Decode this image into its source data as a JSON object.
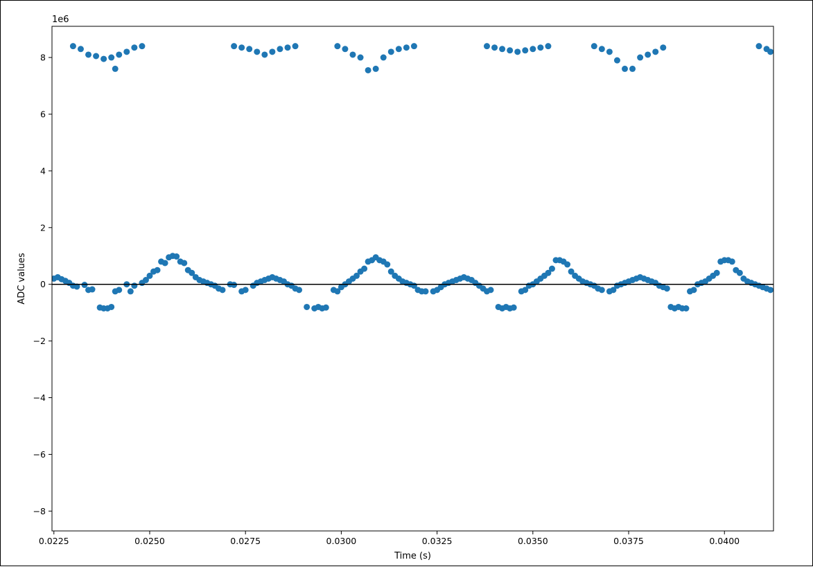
{
  "chart_data": {
    "type": "scatter",
    "title": "",
    "xlabel": "Time (s)",
    "ylabel": "ADC values",
    "y_offset_label": "1e6",
    "xlim": [
      0.02245,
      0.04128
    ],
    "ylim": [
      -8.7,
      9.1
    ],
    "y_scale_multiplier": 1000000,
    "x_ticks": [
      0.0225,
      0.025,
      0.0275,
      0.03,
      0.0325,
      0.035,
      0.0375,
      0.04
    ],
    "x_tick_labels": [
      "0.0225",
      "0.0250",
      "0.0275",
      "0.0300",
      "0.0325",
      "0.0350",
      "0.0375",
      "0.0400"
    ],
    "y_ticks": [
      -8,
      -6,
      -4,
      -2,
      0,
      2,
      4,
      6,
      8
    ],
    "y_tick_labels": [
      "−8",
      "−6",
      "−4",
      "−2",
      "0",
      "2",
      "4",
      "6",
      "8"
    ],
    "grid": false,
    "legend": "none",
    "reference_line_y": 0,
    "marker_color": "#1f77b4",
    "series": [
      {
        "values_unit": "ADC value ×1e6",
        "points": [
          [
            0.0225,
            0.2
          ],
          [
            0.0226,
            0.25
          ],
          [
            0.0227,
            0.18
          ],
          [
            0.0228,
            0.12
          ],
          [
            0.0229,
            0.05
          ],
          [
            0.023,
            -0.05
          ],
          [
            0.0231,
            -0.08
          ],
          [
            0.0233,
            -0.02
          ],
          [
            0.0234,
            -0.2
          ],
          [
            0.0235,
            -0.18
          ],
          [
            0.0237,
            -0.82
          ],
          [
            0.0238,
            -0.85
          ],
          [
            0.0239,
            -0.85
          ],
          [
            0.024,
            -0.8
          ],
          [
            0.0241,
            -0.25
          ],
          [
            0.0242,
            -0.2
          ],
          [
            0.0244,
            0.0
          ],
          [
            0.0245,
            -0.25
          ],
          [
            0.0246,
            -0.05
          ],
          [
            0.0248,
            0.05
          ],
          [
            0.0249,
            0.15
          ],
          [
            0.025,
            0.3
          ],
          [
            0.0251,
            0.45
          ],
          [
            0.0252,
            0.5
          ],
          [
            0.0253,
            0.8
          ],
          [
            0.0254,
            0.75
          ],
          [
            0.0255,
            0.95
          ],
          [
            0.0256,
            1.0
          ],
          [
            0.0257,
            0.98
          ],
          [
            0.0258,
            0.8
          ],
          [
            0.0259,
            0.75
          ],
          [
            0.026,
            0.5
          ],
          [
            0.0261,
            0.4
          ],
          [
            0.0262,
            0.25
          ],
          [
            0.0263,
            0.15
          ],
          [
            0.0264,
            0.1
          ],
          [
            0.0265,
            0.05
          ],
          [
            0.0266,
            0.0
          ],
          [
            0.0267,
            -0.05
          ],
          [
            0.0268,
            -0.15
          ],
          [
            0.0269,
            -0.2
          ],
          [
            0.0271,
            0.0
          ],
          [
            0.0272,
            -0.02
          ],
          [
            0.0274,
            -0.25
          ],
          [
            0.0275,
            -0.2
          ],
          [
            0.0277,
            -0.05
          ],
          [
            0.0278,
            0.05
          ],
          [
            0.0279,
            0.1
          ],
          [
            0.028,
            0.15
          ],
          [
            0.0281,
            0.2
          ],
          [
            0.0282,
            0.25
          ],
          [
            0.0283,
            0.2
          ],
          [
            0.0284,
            0.15
          ],
          [
            0.0285,
            0.1
          ],
          [
            0.0286,
            0.0
          ],
          [
            0.0287,
            -0.05
          ],
          [
            0.0288,
            -0.15
          ],
          [
            0.0289,
            -0.2
          ],
          [
            0.0291,
            -0.8
          ],
          [
            0.0293,
            -0.85
          ],
          [
            0.0294,
            -0.8
          ],
          [
            0.0295,
            -0.85
          ],
          [
            0.0296,
            -0.82
          ],
          [
            0.0298,
            -0.2
          ],
          [
            0.0299,
            -0.25
          ],
          [
            0.03,
            -0.1
          ],
          [
            0.0301,
            0.0
          ],
          [
            0.0302,
            0.1
          ],
          [
            0.0303,
            0.2
          ],
          [
            0.0304,
            0.3
          ],
          [
            0.0305,
            0.45
          ],
          [
            0.0306,
            0.55
          ],
          [
            0.0307,
            0.8
          ],
          [
            0.0308,
            0.85
          ],
          [
            0.0309,
            0.95
          ],
          [
            0.031,
            0.85
          ],
          [
            0.0311,
            0.8
          ],
          [
            0.0312,
            0.7
          ],
          [
            0.0313,
            0.45
          ],
          [
            0.0314,
            0.3
          ],
          [
            0.0315,
            0.2
          ],
          [
            0.0316,
            0.1
          ],
          [
            0.0317,
            0.05
          ],
          [
            0.0318,
            0.0
          ],
          [
            0.0319,
            -0.05
          ],
          [
            0.032,
            -0.2
          ],
          [
            0.0321,
            -0.25
          ],
          [
            0.0322,
            -0.25
          ],
          [
            0.0324,
            -0.25
          ],
          [
            0.0325,
            -0.2
          ],
          [
            0.0326,
            -0.1
          ],
          [
            0.0327,
            0.0
          ],
          [
            0.0328,
            0.05
          ],
          [
            0.0329,
            0.1
          ],
          [
            0.033,
            0.15
          ],
          [
            0.0331,
            0.2
          ],
          [
            0.0332,
            0.25
          ],
          [
            0.0333,
            0.2
          ],
          [
            0.0334,
            0.15
          ],
          [
            0.0335,
            0.05
          ],
          [
            0.0336,
            -0.05
          ],
          [
            0.0337,
            -0.15
          ],
          [
            0.0338,
            -0.25
          ],
          [
            0.0339,
            -0.2
          ],
          [
            0.0341,
            -0.8
          ],
          [
            0.0342,
            -0.85
          ],
          [
            0.0343,
            -0.8
          ],
          [
            0.0344,
            -0.85
          ],
          [
            0.0345,
            -0.82
          ],
          [
            0.0347,
            -0.25
          ],
          [
            0.0348,
            -0.2
          ],
          [
            0.0349,
            -0.05
          ],
          [
            0.035,
            0.0
          ],
          [
            0.0351,
            0.1
          ],
          [
            0.0352,
            0.2
          ],
          [
            0.0353,
            0.3
          ],
          [
            0.0354,
            0.4
          ],
          [
            0.0355,
            0.55
          ],
          [
            0.0356,
            0.85
          ],
          [
            0.0357,
            0.85
          ],
          [
            0.0358,
            0.8
          ],
          [
            0.0359,
            0.7
          ],
          [
            0.036,
            0.45
          ],
          [
            0.0361,
            0.3
          ],
          [
            0.0362,
            0.2
          ],
          [
            0.0363,
            0.1
          ],
          [
            0.0364,
            0.05
          ],
          [
            0.0365,
            0.0
          ],
          [
            0.0366,
            -0.05
          ],
          [
            0.0367,
            -0.15
          ],
          [
            0.0368,
            -0.2
          ],
          [
            0.037,
            -0.25
          ],
          [
            0.0371,
            -0.2
          ],
          [
            0.0372,
            -0.05
          ],
          [
            0.0373,
            0.0
          ],
          [
            0.0374,
            0.05
          ],
          [
            0.0375,
            0.1
          ],
          [
            0.0376,
            0.15
          ],
          [
            0.0377,
            0.2
          ],
          [
            0.0378,
            0.25
          ],
          [
            0.0379,
            0.2
          ],
          [
            0.038,
            0.15
          ],
          [
            0.0381,
            0.1
          ],
          [
            0.0382,
            0.05
          ],
          [
            0.0383,
            -0.05
          ],
          [
            0.0384,
            -0.1
          ],
          [
            0.0385,
            -0.15
          ],
          [
            0.0386,
            -0.8
          ],
          [
            0.0387,
            -0.85
          ],
          [
            0.0388,
            -0.8
          ],
          [
            0.0389,
            -0.85
          ],
          [
            0.039,
            -0.85
          ],
          [
            0.0391,
            -0.25
          ],
          [
            0.0392,
            -0.2
          ],
          [
            0.0393,
            0.0
          ],
          [
            0.0394,
            0.05
          ],
          [
            0.0395,
            0.1
          ],
          [
            0.0396,
            0.2
          ],
          [
            0.0397,
            0.3
          ],
          [
            0.0398,
            0.4
          ],
          [
            0.0399,
            0.8
          ],
          [
            0.04,
            0.85
          ],
          [
            0.0401,
            0.85
          ],
          [
            0.0402,
            0.8
          ],
          [
            0.0403,
            0.5
          ],
          [
            0.0404,
            0.4
          ],
          [
            0.0405,
            0.2
          ],
          [
            0.0406,
            0.1
          ],
          [
            0.0407,
            0.05
          ],
          [
            0.0408,
            0.0
          ],
          [
            0.0409,
            -0.05
          ],
          [
            0.041,
            -0.1
          ],
          [
            0.0411,
            -0.15
          ],
          [
            0.0412,
            -0.2
          ],
          [
            0.023,
            8.4
          ],
          [
            0.0232,
            8.3
          ],
          [
            0.0234,
            8.1
          ],
          [
            0.0236,
            8.05
          ],
          [
            0.0238,
            7.95
          ],
          [
            0.024,
            8.0
          ],
          [
            0.0241,
            7.6
          ],
          [
            0.0242,
            8.1
          ],
          [
            0.0244,
            8.2
          ],
          [
            0.0246,
            8.35
          ],
          [
            0.0248,
            8.4
          ],
          [
            0.0272,
            8.4
          ],
          [
            0.0274,
            8.35
          ],
          [
            0.0276,
            8.3
          ],
          [
            0.0278,
            8.2
          ],
          [
            0.028,
            8.1
          ],
          [
            0.0282,
            8.2
          ],
          [
            0.0284,
            8.3
          ],
          [
            0.0286,
            8.35
          ],
          [
            0.0288,
            8.4
          ],
          [
            0.0299,
            8.4
          ],
          [
            0.0301,
            8.3
          ],
          [
            0.0303,
            8.1
          ],
          [
            0.0305,
            8.0
          ],
          [
            0.0307,
            7.55
          ],
          [
            0.0309,
            7.6
          ],
          [
            0.0311,
            8.0
          ],
          [
            0.0313,
            8.2
          ],
          [
            0.0315,
            8.3
          ],
          [
            0.0317,
            8.35
          ],
          [
            0.0319,
            8.4
          ],
          [
            0.0338,
            8.4
          ],
          [
            0.034,
            8.35
          ],
          [
            0.0342,
            8.3
          ],
          [
            0.0344,
            8.25
          ],
          [
            0.0346,
            8.2
          ],
          [
            0.0348,
            8.25
          ],
          [
            0.035,
            8.3
          ],
          [
            0.0352,
            8.35
          ],
          [
            0.0354,
            8.4
          ],
          [
            0.0366,
            8.4
          ],
          [
            0.0368,
            8.3
          ],
          [
            0.037,
            8.2
          ],
          [
            0.0372,
            7.9
          ],
          [
            0.0374,
            7.6
          ],
          [
            0.0376,
            7.6
          ],
          [
            0.0378,
            8.0
          ],
          [
            0.038,
            8.1
          ],
          [
            0.0382,
            8.2
          ],
          [
            0.0384,
            8.35
          ],
          [
            0.0409,
            8.4
          ],
          [
            0.0411,
            8.3
          ],
          [
            0.0412,
            8.2
          ]
        ]
      }
    ]
  }
}
